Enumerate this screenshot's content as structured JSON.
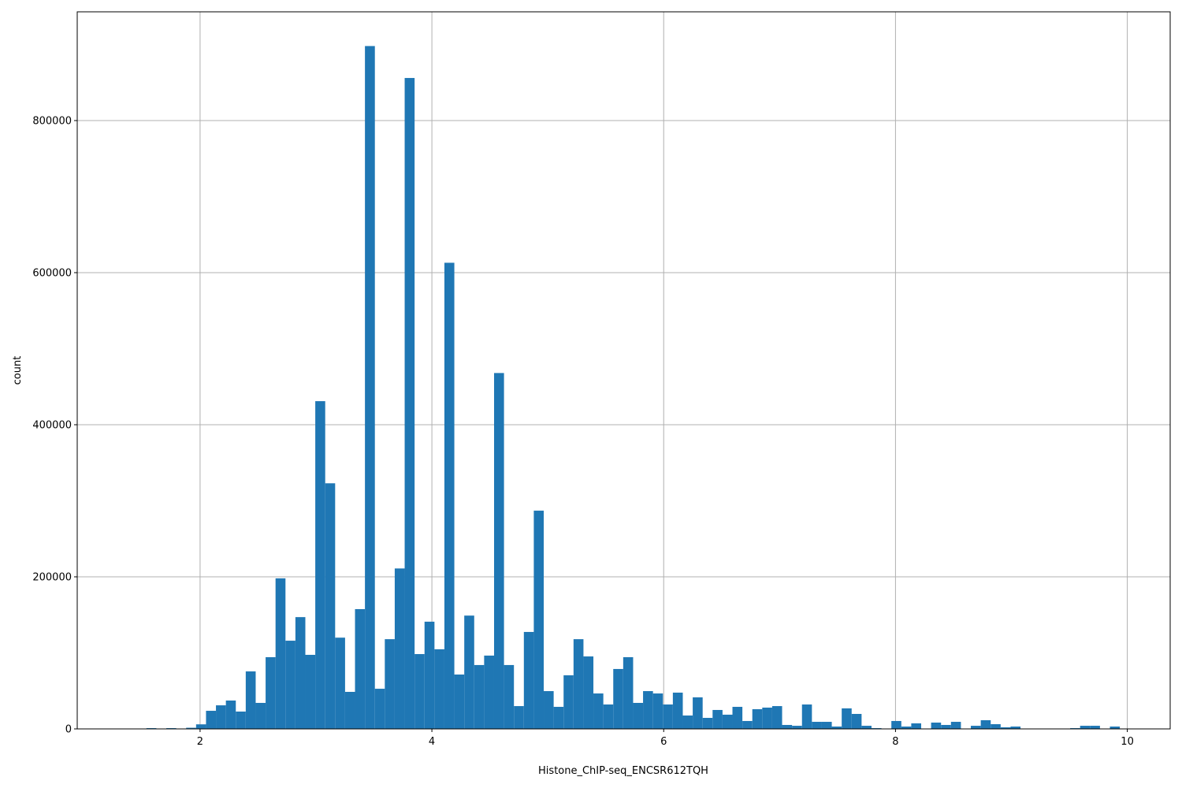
{
  "chart_data": {
    "type": "bar",
    "subtype": "histogram",
    "title": "",
    "xlabel": "Histone_ChIP-seq_ENCSR612TQH",
    "ylabel": "count",
    "xlim": [
      0.94,
      10.37
    ],
    "ylim": [
      0,
      943000
    ],
    "grid": true,
    "bar_color": "#1f77b4",
    "bin_start": 1.537,
    "bin_width": 0.0857,
    "x_ticks": [
      "2",
      "4",
      "6",
      "8",
      "10"
    ],
    "x_tick_values": [
      2,
      4,
      6,
      8,
      10
    ],
    "y_ticks": [
      "0",
      "200000",
      "400000",
      "600000",
      "800000"
    ],
    "y_tick_values": [
      0,
      200000,
      400000,
      600000,
      800000
    ],
    "values": [
      1000,
      0,
      1000,
      0,
      1500,
      6000,
      23800,
      31000,
      37300,
      22800,
      75600,
      34200,
      94300,
      198000,
      116000,
      147000,
      97400,
      431000,
      323000,
      120000,
      48700,
      157500,
      898000,
      52800,
      118000,
      211000,
      856000,
      98400,
      141000,
      104700,
      613000,
      71500,
      149000,
      84000,
      96400,
      468000,
      84000,
      30000,
      127500,
      287000,
      49700,
      29000,
      70500,
      118000,
      95300,
      46600,
      32100,
      78800,
      94300,
      34200,
      49700,
      46600,
      32100,
      47700,
      17600,
      41500,
      14500,
      24900,
      18700,
      29000,
      10400,
      25900,
      28000,
      30000,
      5200,
      4100,
      32100,
      9300,
      9300,
      3100,
      27000,
      19700,
      4100,
      1000,
      0,
      10400,
      3100,
      7300,
      0,
      8300,
      5200,
      9300,
      0,
      4100,
      11400,
      6200,
      2100,
      3100,
      0,
      0,
      0,
      0,
      0,
      1000,
      4100,
      4100,
      0,
      3100
    ]
  }
}
